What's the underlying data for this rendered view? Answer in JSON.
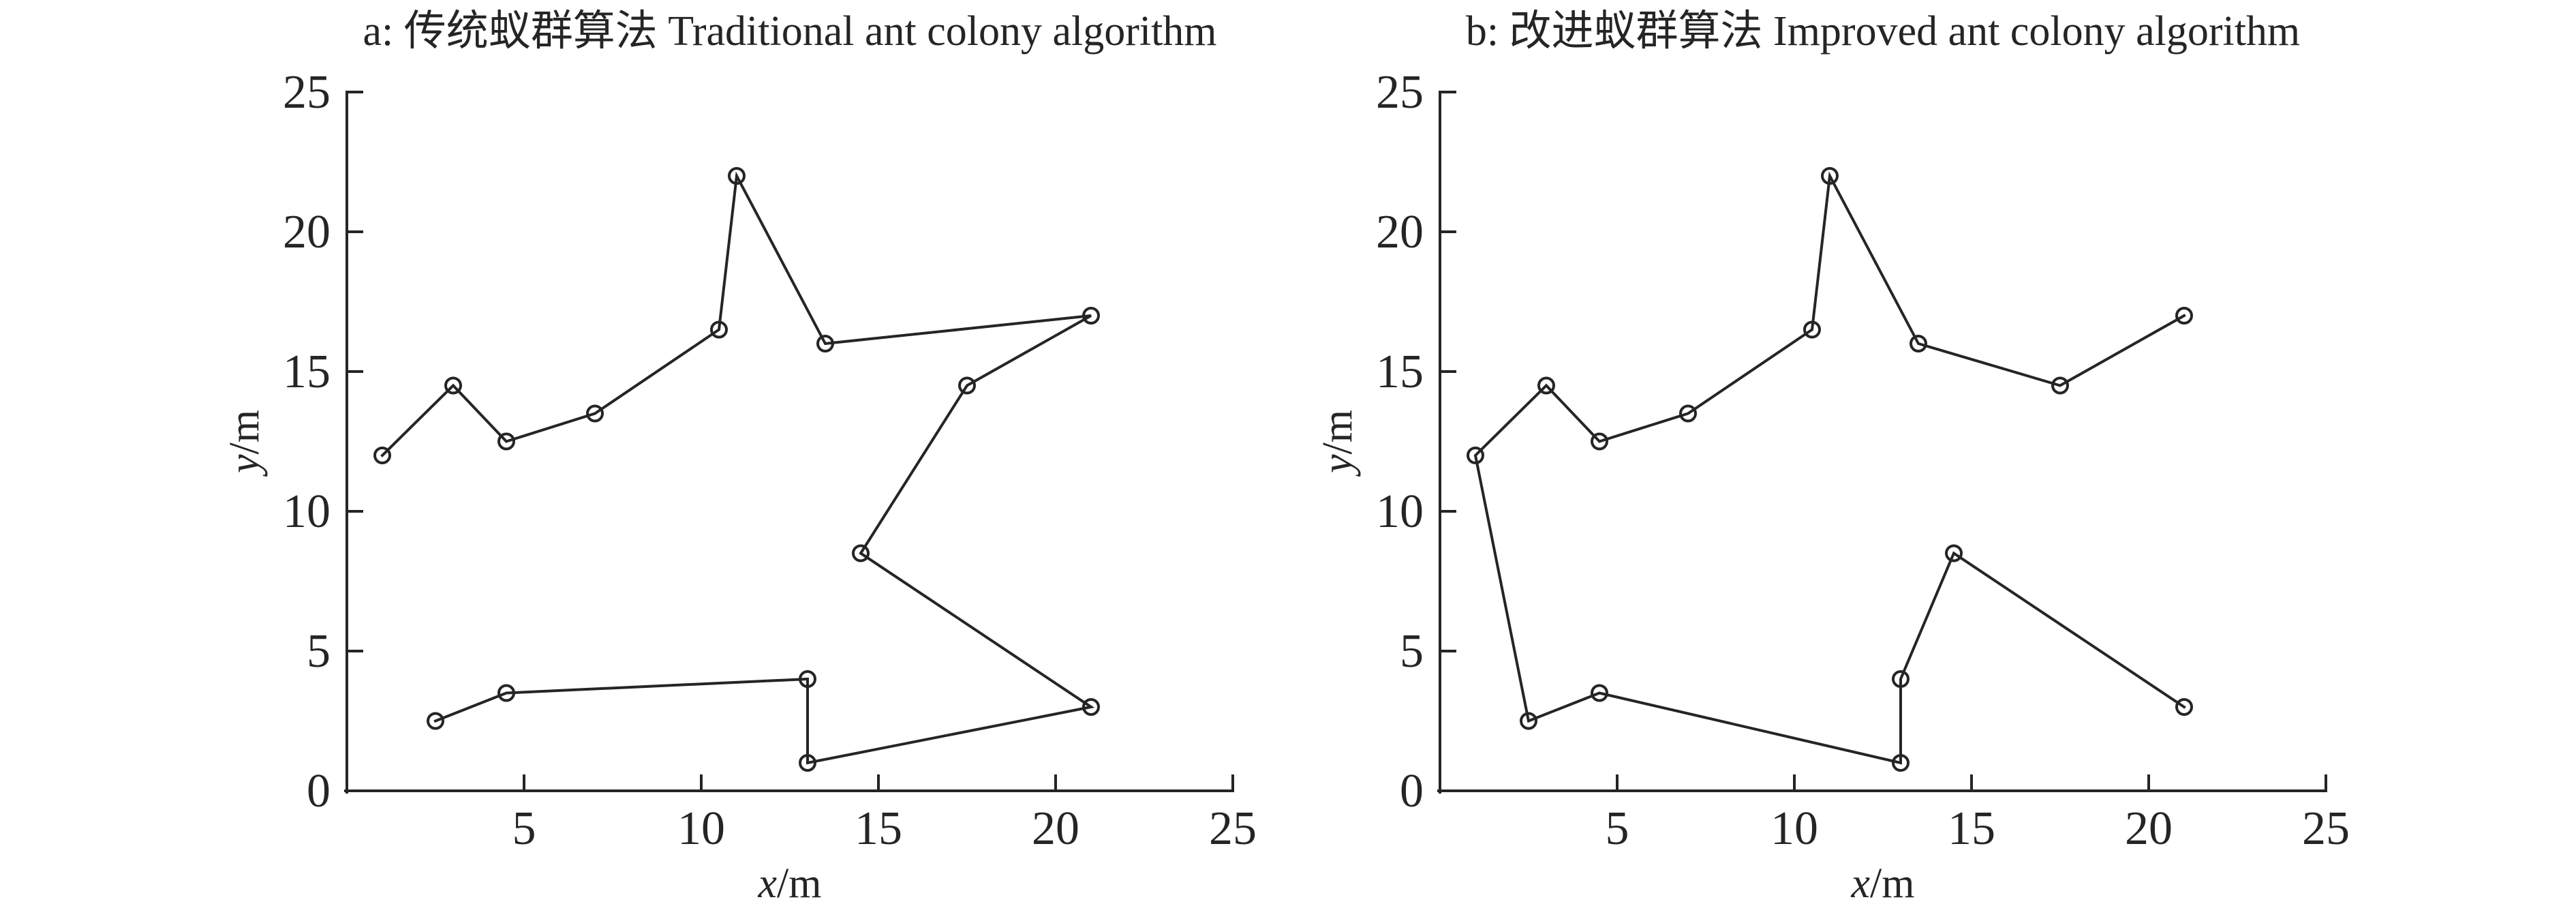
{
  "page": {
    "background_color": "#ffffff",
    "ink_color": "#262424"
  },
  "chart_data": [
    {
      "type": "line",
      "panel_id": "a",
      "title": "a: 传统蚁群算法 Traditional ant colony algorithm",
      "xlabel": "x/m",
      "ylabel": "y/m",
      "xlim": [
        0,
        25
      ],
      "ylim": [
        0,
        25
      ],
      "xticks": [
        5,
        10,
        15,
        20,
        25
      ],
      "yticks": [
        0,
        5,
        10,
        15,
        20,
        25
      ],
      "grid": false,
      "legend_position": "none",
      "marker": "open-circle",
      "path": [
        [
          1,
          12
        ],
        [
          3,
          14.5
        ],
        [
          4.5,
          12.5
        ],
        [
          7,
          13.5
        ],
        [
          10.5,
          16.5
        ],
        [
          11,
          22
        ],
        [
          13.5,
          16
        ],
        [
          21,
          17
        ],
        [
          17.5,
          14.5
        ],
        [
          14.5,
          8.5
        ],
        [
          21,
          3
        ],
        [
          13,
          1
        ],
        [
          13,
          4
        ],
        [
          4.5,
          3.5
        ],
        [
          2.5,
          2.5
        ]
      ]
    },
    {
      "type": "line",
      "panel_id": "b",
      "title": "b: 改进蚁群算法 Improved ant colony algorithm",
      "xlabel": "x/m",
      "ylabel": "y/m",
      "xlim": [
        0,
        25
      ],
      "ylim": [
        0,
        25
      ],
      "xticks": [
        5,
        10,
        15,
        20,
        25
      ],
      "yticks": [
        0,
        5,
        10,
        15,
        20,
        25
      ],
      "grid": false,
      "legend_position": "none",
      "marker": "open-circle",
      "path": [
        [
          21,
          17
        ],
        [
          17.5,
          14.5
        ],
        [
          13.5,
          16
        ],
        [
          11,
          22
        ],
        [
          10.5,
          16.5
        ],
        [
          7,
          13.5
        ],
        [
          4.5,
          12.5
        ],
        [
          3,
          14.5
        ],
        [
          1,
          12
        ],
        [
          2.5,
          2.5
        ],
        [
          4.5,
          3.5
        ],
        [
          13,
          1
        ],
        [
          13,
          4
        ],
        [
          14.5,
          8.5
        ],
        [
          21,
          3
        ]
      ]
    }
  ]
}
